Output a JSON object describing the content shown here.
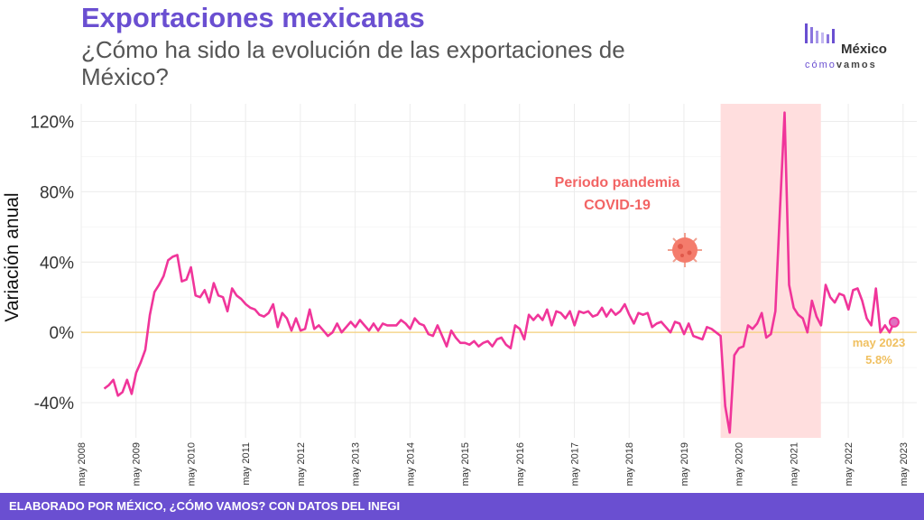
{
  "header": {
    "title": "Exportaciones mexicanas",
    "subtitle": "¿Cómo ha sido la evolución de las exportaciones de México?"
  },
  "logo": {
    "main": "México",
    "sub_a": "cómo",
    "sub_b": "vamos"
  },
  "footer": {
    "text": "ELABORADO POR MÉXICO, ¿CÓMO VAMOS? CON DATOS DEL INEGI"
  },
  "colors": {
    "line": "#f0359a",
    "band": "#ffdede",
    "zero": "#f5d07a",
    "accent": "#6a4fd1",
    "annot": "#f26464",
    "label": "#f0c060"
  },
  "icons": [
    "virus-icon",
    "logo-bars-icon"
  ],
  "chart_data": {
    "type": "line",
    "ylabel": "Variación anual",
    "ylim": [
      -60,
      130
    ],
    "yticks": [
      -40,
      0,
      40,
      80,
      120
    ],
    "ytick_labels": [
      "-40%",
      "0%",
      "40%",
      "80%",
      "120%"
    ],
    "xlim": [
      2008.33,
      2023.58
    ],
    "xticks": [
      "may 2008",
      "may 2009",
      "may 2010",
      "may 2011",
      "may 2012",
      "may 2013",
      "may 2014",
      "may 2015",
      "may 2016",
      "may 2017",
      "may 2018",
      "may 2019",
      "may 2020",
      "may 2021",
      "may 2022",
      "may 2023"
    ],
    "band": {
      "start": 2020.0,
      "end": 2021.83,
      "label_line1": "Periodo pandemia",
      "label_line2": "COVID-19"
    },
    "end_label": {
      "date": "may 2023",
      "value": "5.8%"
    },
    "series": [
      {
        "start": 2008.75,
        "step": 0.0833333,
        "values": [
          -32,
          -30,
          -27,
          -36,
          -34,
          -27,
          -35,
          -23,
          -17,
          -10,
          10,
          23,
          27,
          32,
          41,
          43,
          44,
          29,
          30,
          37,
          21,
          20,
          24,
          17,
          28,
          21,
          20,
          12,
          25,
          21,
          19,
          16,
          14,
          13,
          10,
          9,
          11,
          16,
          3,
          11,
          8,
          1,
          8,
          1,
          2,
          13,
          2,
          4,
          1,
          -2,
          0,
          5,
          0,
          3,
          6,
          3,
          7,
          4,
          1,
          5,
          1,
          5,
          4,
          4,
          4,
          7,
          5,
          2,
          8,
          5,
          4,
          -1,
          -2,
          4,
          -2,
          -8,
          1,
          -3,
          -6,
          -6,
          -7,
          -5,
          -8,
          -6,
          -5,
          -8,
          -4,
          -3,
          -7,
          -9,
          4,
          2,
          -4,
          10,
          7,
          10,
          7,
          13,
          4,
          12,
          11,
          8,
          12,
          4,
          12,
          11,
          12,
          9,
          10,
          14,
          9,
          13,
          10,
          12,
          16,
          10,
          5,
          11,
          10,
          11,
          3,
          5,
          6,
          3,
          0,
          6,
          5,
          -1,
          5,
          -2,
          -3,
          -4,
          3,
          2,
          0,
          -2,
          -42,
          -57,
          -13,
          -9,
          -8,
          4,
          2,
          5,
          11,
          -3,
          -1,
          12,
          70,
          125,
          27,
          14,
          10,
          8,
          0,
          18,
          9,
          4,
          27,
          20,
          17,
          22,
          21,
          13,
          24,
          25,
          18,
          8,
          4,
          25,
          0,
          4,
          0,
          5.8
        ]
      }
    ]
  }
}
